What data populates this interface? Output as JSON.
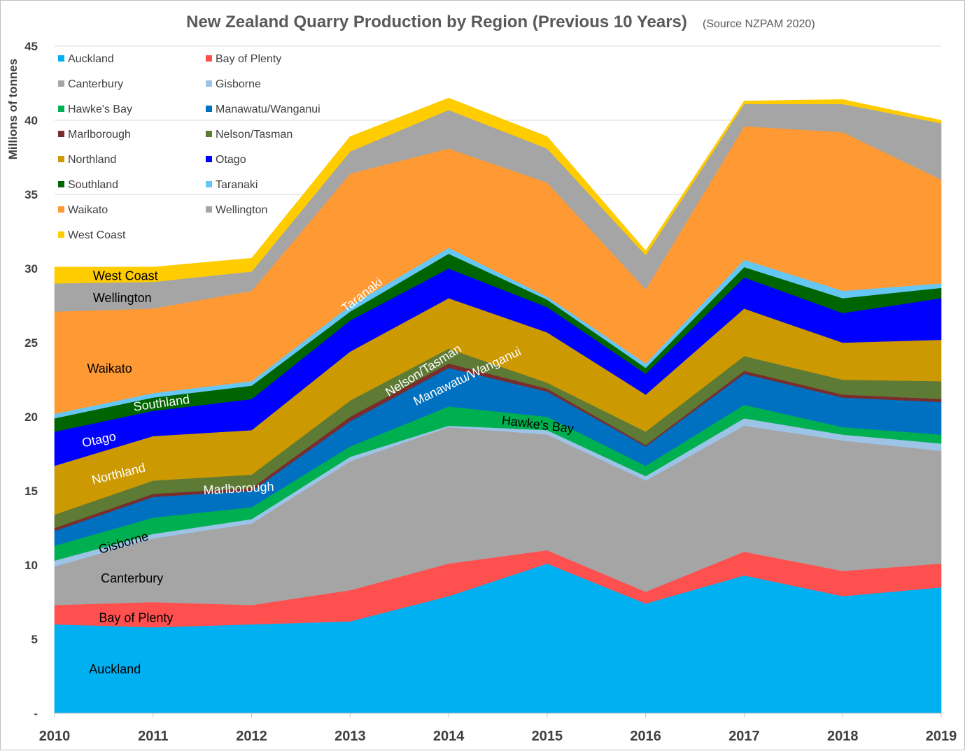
{
  "chart_data": {
    "type": "area",
    "stacked": true,
    "title": "New Zealand Quarry Production by Region (Previous 10 Years)",
    "subtitle": "(Source NZPAM 2020)",
    "ylabel": "Millions of tonnes",
    "xlabel": "",
    "ylim": [
      0,
      45
    ],
    "y_ticks": [
      {
        "value": 0,
        "label": "-"
      },
      {
        "value": 5,
        "label": "5"
      },
      {
        "value": 10,
        "label": "10"
      },
      {
        "value": 15,
        "label": "15"
      },
      {
        "value": 20,
        "label": "20"
      },
      {
        "value": 25,
        "label": "25"
      },
      {
        "value": 30,
        "label": "30"
      },
      {
        "value": 35,
        "label": "35"
      },
      {
        "value": 40,
        "label": "40"
      },
      {
        "value": 45,
        "label": "45"
      }
    ],
    "grid": true,
    "legend_position": "top-left",
    "categories": [
      "2010",
      "2011",
      "2012",
      "2013",
      "2014",
      "2015",
      "2016",
      "2017",
      "2018",
      "2019"
    ],
    "series": [
      {
        "name": "Auckland",
        "color": "#00B0F0",
        "values": [
          6.0,
          5.8,
          6.0,
          6.2,
          7.9,
          10.1,
          7.4,
          9.3,
          7.9,
          8.5
        ]
      },
      {
        "name": "Bay of Plenty",
        "color": "#FF5050",
        "values": [
          1.3,
          1.7,
          1.3,
          2.1,
          2.2,
          0.9,
          0.8,
          1.6,
          1.7,
          1.6
        ]
      },
      {
        "name": "Canterbury",
        "color": "#A5A5A5",
        "values": [
          2.6,
          4.3,
          5.5,
          8.7,
          9.2,
          7.8,
          7.5,
          8.5,
          8.8,
          7.6
        ]
      },
      {
        "name": "Gisborne",
        "color": "#9DC3E6",
        "values": [
          0.4,
          0.3,
          0.3,
          0.3,
          0.1,
          0.3,
          0.3,
          0.5,
          0.4,
          0.5
        ]
      },
      {
        "name": "Hawke's Bay",
        "color": "#00B050",
        "values": [
          1.0,
          1.1,
          0.8,
          0.7,
          1.3,
          0.9,
          0.7,
          0.9,
          0.5,
          0.6
        ]
      },
      {
        "name": "Manawatu/Wanganui",
        "color": "#0070C0",
        "values": [
          1.0,
          1.4,
          1.1,
          1.7,
          2.6,
          1.7,
          1.3,
          2.1,
          2.0,
          2.2
        ]
      },
      {
        "name": "Marlborough",
        "color": "#7B2C2C",
        "values": [
          0.2,
          0.2,
          0.2,
          0.3,
          0.3,
          0.2,
          0.1,
          0.2,
          0.2,
          0.2
        ]
      },
      {
        "name": "Nelson/Tasman",
        "color": "#5E7B36",
        "values": [
          0.9,
          0.9,
          0.9,
          1.1,
          1.0,
          0.4,
          0.9,
          1.0,
          1.0,
          1.2
        ]
      },
      {
        "name": "Northland",
        "color": "#CC9900",
        "values": [
          3.3,
          3.0,
          3.0,
          3.3,
          3.4,
          3.4,
          2.5,
          3.2,
          2.5,
          2.8
        ]
      },
      {
        "name": "Otago",
        "color": "#0000FF",
        "values": [
          2.3,
          1.7,
          2.1,
          2.1,
          2.0,
          1.7,
          1.4,
          2.1,
          2.0,
          2.8
        ]
      },
      {
        "name": "Southland",
        "color": "#006400",
        "values": [
          0.9,
          0.9,
          0.9,
          0.6,
          1.0,
          0.5,
          0.4,
          0.7,
          1.0,
          0.7
        ]
      },
      {
        "name": "Taranaki",
        "color": "#66C7F4",
        "values": [
          0.3,
          0.3,
          0.3,
          0.4,
          0.4,
          0.2,
          0.3,
          0.5,
          0.5,
          0.3
        ]
      },
      {
        "name": "Waikato",
        "color": "#FF9933",
        "values": [
          6.9,
          5.7,
          6.1,
          8.9,
          6.7,
          7.7,
          5.0,
          9.0,
          10.7,
          7.0
        ]
      },
      {
        "name": "Wellington",
        "color": "#A5A5A5",
        "values": [
          1.9,
          1.8,
          1.3,
          1.5,
          2.6,
          2.3,
          2.3,
          1.5,
          1.9,
          3.8
        ]
      },
      {
        "name": "West Coast",
        "color": "#FFCC00",
        "values": [
          1.1,
          1.0,
          0.9,
          1.0,
          0.8,
          0.8,
          0.3,
          0.2,
          0.3,
          0.2
        ]
      }
    ],
    "area_labels": [
      {
        "series": "Auckland",
        "text": "Auckland"
      },
      {
        "series": "Bay of Plenty",
        "text": "Bay of Plenty"
      },
      {
        "series": "Canterbury",
        "text": "Canterbury"
      },
      {
        "series": "Gisborne",
        "text": "Gisborne"
      },
      {
        "series": "Marlborough",
        "text": "Marlborough"
      },
      {
        "series": "Northland",
        "text": "Northland"
      },
      {
        "series": "Otago",
        "text": "Otago"
      },
      {
        "series": "Southland",
        "text": "Southland"
      },
      {
        "series": "Waikato",
        "text": "Waikato"
      },
      {
        "series": "Wellington",
        "text": "Wellington"
      },
      {
        "series": "West Coast",
        "text": "West Coast"
      },
      {
        "series": "Taranaki",
        "text": "Taranaki"
      },
      {
        "series": "Nelson/Tasman",
        "text": "Nelson/Tasman"
      },
      {
        "series": "Manawatu/Wanganui",
        "text": "Manawatu/Wanganui"
      },
      {
        "series": "Hawke's Bay",
        "text": "Hawke's Bay"
      }
    ]
  }
}
